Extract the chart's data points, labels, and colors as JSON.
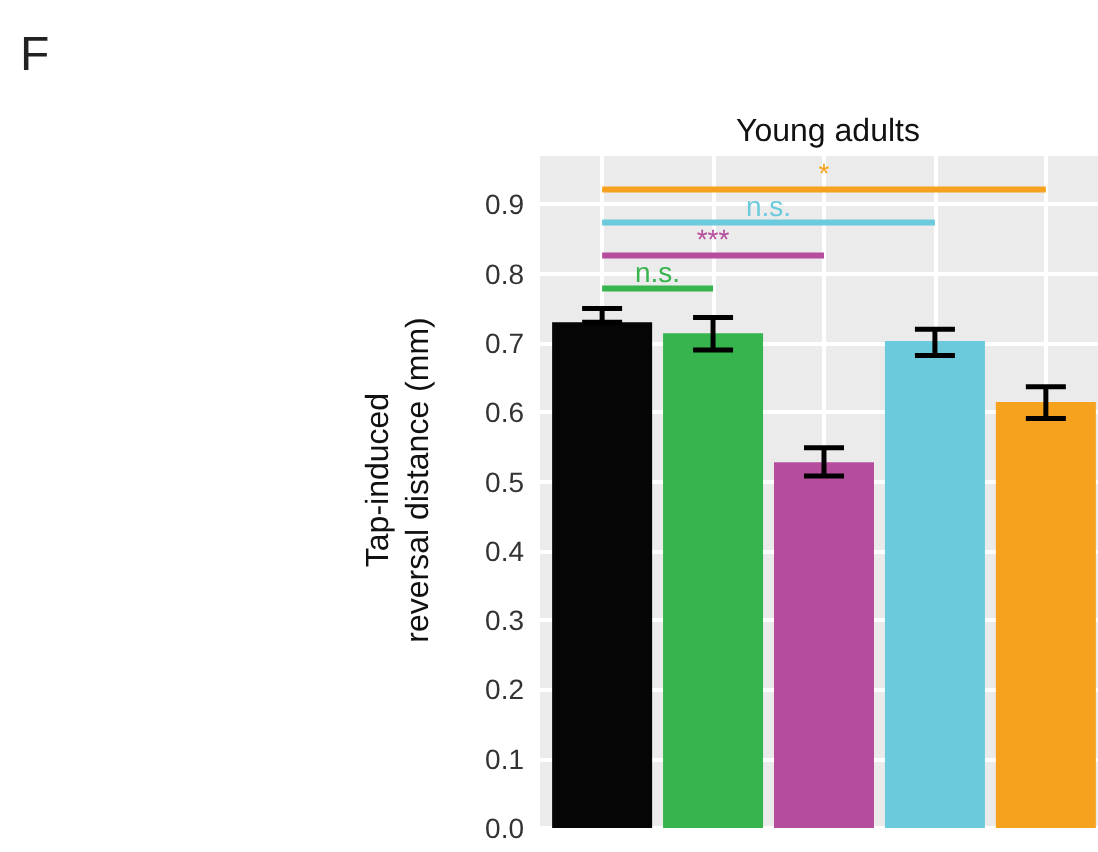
{
  "chart_data": {
    "type": "bar",
    "title": "Young adults",
    "ylabel": "Tap-induced\nreversal distance (mm)",
    "categories": [
      null,
      null,
      null,
      null,
      null
    ],
    "values": [
      0.73,
      0.714,
      0.528,
      0.703,
      0.615
    ],
    "colors": [
      "#050505",
      "#37b44e",
      "#b54c9c",
      "#6bcadb",
      "#f7a21f"
    ],
    "errors": [
      [
        0.73,
        0.75
      ],
      [
        0.69,
        0.737
      ],
      [
        0.508,
        0.549
      ],
      [
        0.682,
        0.72
      ],
      [
        0.591,
        0.637
      ]
    ],
    "ylim": [
      0,
      0.97
    ],
    "yticks": [
      {
        "value": 0,
        "label": "0.0"
      },
      {
        "value": 0.1,
        "label": "0.1"
      },
      {
        "value": 0.2,
        "label": "0.2"
      },
      {
        "value": 0.3,
        "label": "0.3"
      },
      {
        "value": 0.4,
        "label": "0.4"
      },
      {
        "value": 0.5,
        "label": "0.5"
      },
      {
        "value": 0.6,
        "label": "0.6"
      },
      {
        "value": 0.7,
        "label": "0.7"
      },
      {
        "value": 0.8,
        "label": "0.8"
      },
      {
        "value": 0.9,
        "label": "0.9"
      }
    ],
    "grid": true,
    "annotations": [
      "F",
      "n.s.",
      "***",
      "n.s.",
      "*"
    ]
  }
}
